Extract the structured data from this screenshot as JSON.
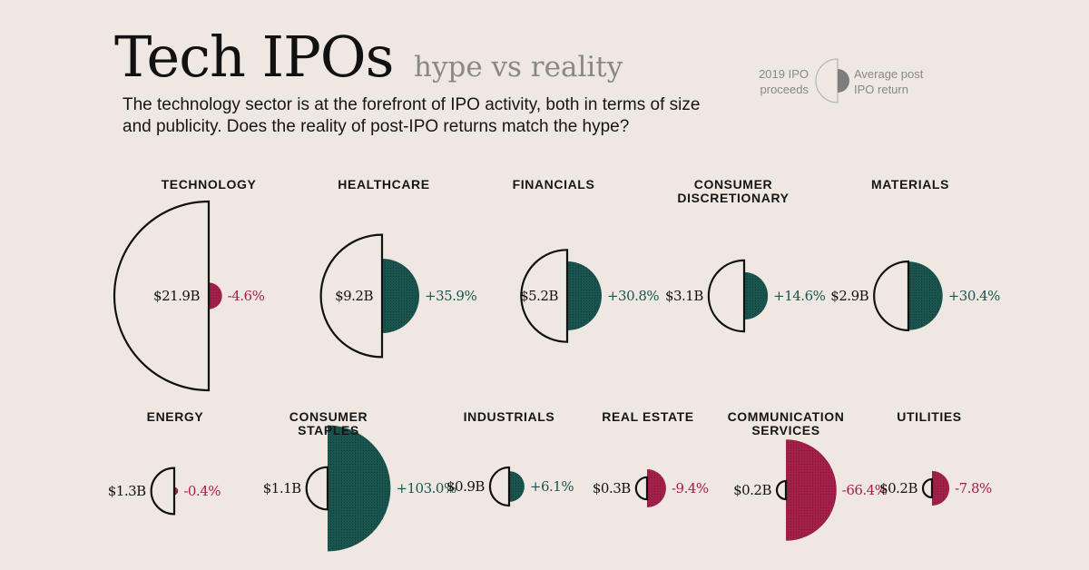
{
  "header": {
    "title": "Tech IPOs",
    "subtitle": "hype vs reality",
    "description": "The technology sector is at the forefront of IPO activity, both in terms of size and publicity. Does the reality of post-IPO returns match the hype?"
  },
  "legend": {
    "left_label": "2019 IPO proceeds",
    "right_label": "Average post IPO return"
  },
  "colors": {
    "background": "#efe8e2",
    "positive": "#1a544f",
    "negative": "#a3204a",
    "legend_fill": "#7d7d7d"
  },
  "chart_data": {
    "type": "semicircle-pairs",
    "title": "Tech IPOs",
    "subtitle": "hype vs reality",
    "value_units": [
      "2019 IPO proceeds (USD billions)",
      "Average post IPO return (%)"
    ],
    "sectors": [
      {
        "name": "TECHNOLOGY",
        "proceeds": 21.9,
        "proceeds_label": "$21.9B",
        "return": -4.6,
        "return_label": "-4.6%"
      },
      {
        "name": "HEALTHCARE",
        "proceeds": 9.2,
        "proceeds_label": "$9.2B",
        "return": 35.9,
        "return_label": "+35.9%"
      },
      {
        "name": "FINANCIALS",
        "proceeds": 5.2,
        "proceeds_label": "$5.2B",
        "return": 30.8,
        "return_label": "+30.8%"
      },
      {
        "name": "CONSUMER DISCRETIONARY",
        "proceeds": 3.1,
        "proceeds_label": "$3.1B",
        "return": 14.6,
        "return_label": "+14.6%"
      },
      {
        "name": "MATERIALS",
        "proceeds": 2.9,
        "proceeds_label": "$2.9B",
        "return": 30.4,
        "return_label": "+30.4%"
      },
      {
        "name": "ENERGY",
        "proceeds": 1.3,
        "proceeds_label": "$1.3B",
        "return": -0.4,
        "return_label": "-0.4%"
      },
      {
        "name": "CONSUMER STAPLES",
        "proceeds": 1.1,
        "proceeds_label": "$1.1B",
        "return": 103.0,
        "return_label": "+103.0%"
      },
      {
        "name": "INDUSTRIALS",
        "proceeds": 0.9,
        "proceeds_label": "$0.9B",
        "return": 6.1,
        "return_label": "+6.1%"
      },
      {
        "name": "REAL ESTATE",
        "proceeds": 0.3,
        "proceeds_label": "$0.3B",
        "return": -9.4,
        "return_label": "-9.4%"
      },
      {
        "name": "COMMUNICATION SERVICES",
        "proceeds": 0.2,
        "proceeds_label": "$0.2B",
        "return": -66.4,
        "return_label": "-66.4%"
      },
      {
        "name": "UTILITIES",
        "proceeds": 0.2,
        "proceeds_label": "$0.2B",
        "return": -7.8,
        "return_label": "-7.8%"
      }
    ]
  }
}
